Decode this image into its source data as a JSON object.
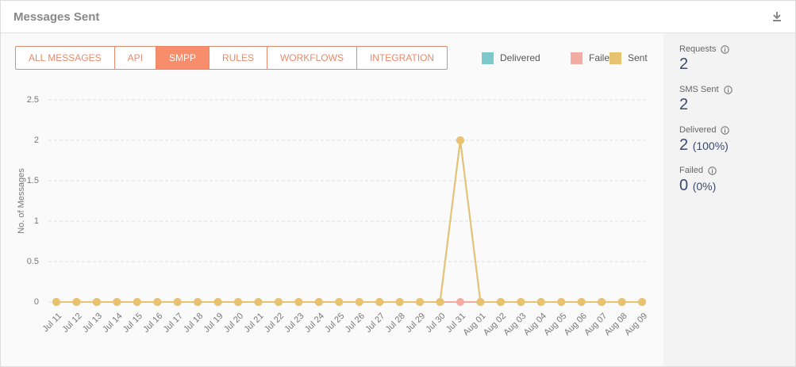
{
  "header": {
    "title": "Messages Sent"
  },
  "tabs": [
    "ALL MESSAGES",
    "API",
    "SMPP",
    "RULES",
    "WORKFLOWS",
    "INTEGRATION"
  ],
  "active_tab": 2,
  "stats": [
    {
      "label": "Requests",
      "value": "2"
    },
    {
      "label": "SMS Sent",
      "value": "2"
    },
    {
      "label": "Delivered",
      "value": "2",
      "detail": "(100%)"
    },
    {
      "label": "Failed",
      "value": "0",
      "detail": "(0%)"
    }
  ],
  "chart_data": {
    "type": "line",
    "y_label": "No. of Messages",
    "categories": [
      "Jul 11",
      "Jul 12",
      "Jul 13",
      "Jul 14",
      "Jul 15",
      "Jul 16",
      "Jul 17",
      "Jul 18",
      "Jul 19",
      "Jul 20",
      "Jul 21",
      "Jul 22",
      "Jul 23",
      "Jul 24",
      "Jul 25",
      "Jul 26",
      "Jul 27",
      "Jul 28",
      "Jul 29",
      "Jul 30",
      "Jul 31",
      "Aug 01",
      "Aug 02",
      "Aug 03",
      "Aug 04",
      "Aug 05",
      "Aug 06",
      "Aug 07",
      "Aug 08",
      "Aug 09"
    ],
    "series": [
      {
        "name": "Delivered",
        "color": "#7cc8cb",
        "values": [
          0,
          0,
          0,
          0,
          0,
          0,
          0,
          0,
          0,
          0,
          0,
          0,
          0,
          0,
          0,
          0,
          0,
          0,
          0,
          0,
          2,
          0,
          0,
          0,
          0,
          0,
          0,
          0,
          0,
          0
        ]
      },
      {
        "name": "Failed",
        "color": "#f2aca2",
        "values": [
          0,
          0,
          0,
          0,
          0,
          0,
          0,
          0,
          0,
          0,
          0,
          0,
          0,
          0,
          0,
          0,
          0,
          0,
          0,
          0,
          0,
          0,
          0,
          0,
          0,
          0,
          0,
          0,
          0,
          0
        ]
      },
      {
        "name": "Sent",
        "color": "#e9c270",
        "values": [
          0,
          0,
          0,
          0,
          0,
          0,
          0,
          0,
          0,
          0,
          0,
          0,
          0,
          0,
          0,
          0,
          0,
          0,
          0,
          0,
          2,
          0,
          0,
          0,
          0,
          0,
          0,
          0,
          0,
          0
        ]
      }
    ],
    "ylim": [
      0,
      2.5
    ],
    "yticks": [
      0,
      0.5,
      1,
      1.5,
      2,
      2.5
    ],
    "grid": true
  }
}
